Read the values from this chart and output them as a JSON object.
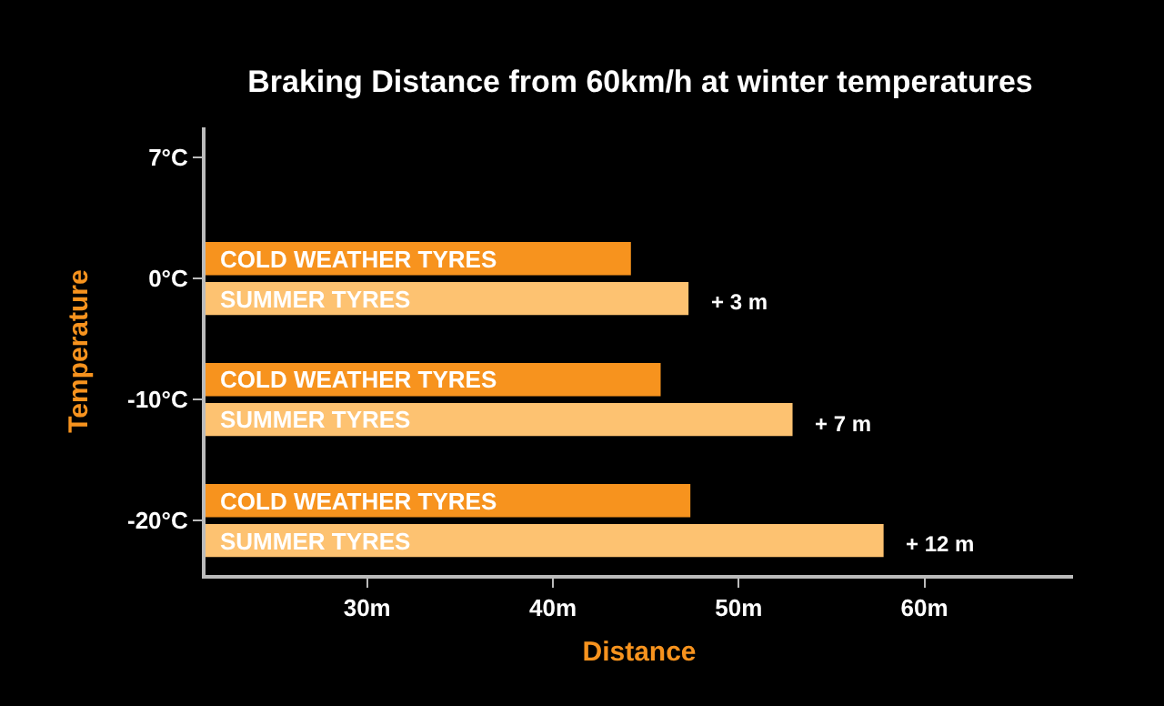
{
  "chart_data": {
    "type": "bar",
    "orientation": "horizontal",
    "title": "Braking Distance from 60km/h at winter temperatures",
    "xlabel": "Distance",
    "ylabel": "Temperature",
    "categories": [
      "7°C",
      "0°C",
      "-10°C",
      "-20°C"
    ],
    "series": [
      {
        "name": "COLD WEATHER TYRES",
        "color": "#f7931e",
        "values": [
          null,
          44.2,
          45.8,
          47.4
        ]
      },
      {
        "name": "SUMMER TYRES",
        "color": "#fdc271",
        "values": [
          null,
          47.3,
          52.9,
          57.8
        ]
      }
    ],
    "xlim": [
      21.3,
      68
    ],
    "xticks": [
      {
        "value": 30,
        "label": "30m"
      },
      {
        "value": 40,
        "label": "40m"
      },
      {
        "value": 50,
        "label": "50m"
      },
      {
        "value": 60,
        "label": "60m"
      }
    ],
    "annotations": [
      {
        "text": "+ 3 m",
        "x": 47.3,
        "y": "0°C"
      },
      {
        "text": "+ 7 m",
        "x": 52.9,
        "y": "-10°C"
      },
      {
        "text": "+ 12 m",
        "x": 57.8,
        "y": "-20°C"
      }
    ],
    "grid": false,
    "legend": false
  }
}
